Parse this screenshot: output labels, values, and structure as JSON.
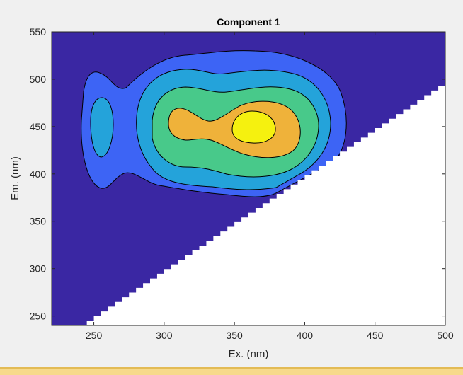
{
  "colors": {
    "figure_bg": "#f0f0f0",
    "background_level": "#3a27a3",
    "masked_region": "#ffffff",
    "bottom_bar": "#f7d98b",
    "contour_line": "#000000"
  },
  "chart_data": {
    "type": "heatmap",
    "subtype": "filled-contour",
    "title": "Component 1",
    "xlabel": "Ex. (nm)",
    "ylabel": "Em. (nm)",
    "xlim": [
      220,
      500
    ],
    "ylim": [
      240,
      550
    ],
    "xticks": [
      "250",
      "300",
      "350",
      "400",
      "450",
      "500"
    ],
    "yticks": [
      "250",
      "300",
      "350",
      "400",
      "450",
      "500",
      "550"
    ],
    "grid": false,
    "legend": "none",
    "colormap": "parula",
    "mask_boundary": {
      "description": "white staircase region below diagonal (Em < boundary) is masked",
      "from": {
        "x": 240,
        "y": 240
      },
      "to": {
        "x": 500,
        "y": 498
      }
    },
    "levels": [
      {
        "level": 1,
        "color": "#3d64f5"
      },
      {
        "level": 2,
        "color": "#24a3da"
      },
      {
        "level": 3,
        "color": "#48c98a"
      },
      {
        "level": 4,
        "color": "#efb23a"
      },
      {
        "level": 5,
        "color": "#f5f10f"
      }
    ],
    "peak": {
      "x": 365,
      "y": 452
    }
  }
}
